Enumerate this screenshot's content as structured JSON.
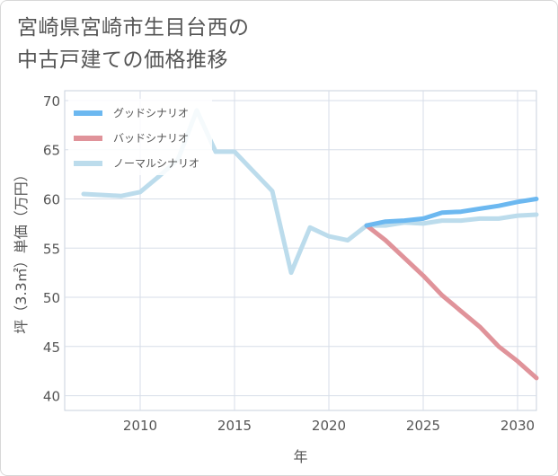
{
  "title": "宮崎県宮崎市生目台西の\n中古戸建ての価格推移",
  "chart_data": {
    "type": "line",
    "title": "宮崎県宮崎市生目台西の中古戸建ての価格推移",
    "xlabel": "年",
    "ylabel": "坪（3.3㎡）単価（万円）",
    "xlim": [
      2006,
      2031
    ],
    "ylim": [
      38.5,
      71
    ],
    "xticks": [
      2010,
      2015,
      2020,
      2025,
      2030
    ],
    "yticks": [
      40,
      45,
      50,
      55,
      60,
      65,
      70
    ],
    "grid": true,
    "legend_position": "top-left",
    "series": [
      {
        "name": "グッドシナリオ",
        "color": "#6cb8f0",
        "x": [
          2022,
          2023,
          2024,
          2025,
          2026,
          2027,
          2028,
          2029,
          2030,
          2031
        ],
        "y": [
          57.3,
          57.7,
          57.8,
          58.0,
          58.6,
          58.7,
          59.0,
          59.3,
          59.7,
          60.0
        ]
      },
      {
        "name": "バッドシナリオ",
        "color": "#e0939a",
        "x": [
          2022,
          2023,
          2024,
          2025,
          2026,
          2027,
          2028,
          2029,
          2030,
          2031
        ],
        "y": [
          57.3,
          55.8,
          54.0,
          52.2,
          50.2,
          48.6,
          47.0,
          45.0,
          43.5,
          41.8
        ]
      },
      {
        "name": "ノーマルシナリオ",
        "color": "#bcdcec",
        "x": [
          2007,
          2008,
          2009,
          2010,
          2011,
          2012,
          2013,
          2014,
          2015,
          2016,
          2017,
          2018,
          2019,
          2020,
          2021,
          2022,
          2023,
          2024,
          2025,
          2026,
          2027,
          2028,
          2029,
          2030,
          2031
        ],
        "y": [
          60.5,
          60.4,
          60.3,
          60.7,
          62.3,
          64.0,
          69.0,
          64.8,
          64.8,
          62.8,
          60.8,
          52.5,
          57.1,
          56.2,
          55.8,
          57.3,
          57.3,
          57.6,
          57.5,
          57.8,
          57.8,
          58.0,
          58.0,
          58.3,
          58.4
        ]
      }
    ]
  }
}
